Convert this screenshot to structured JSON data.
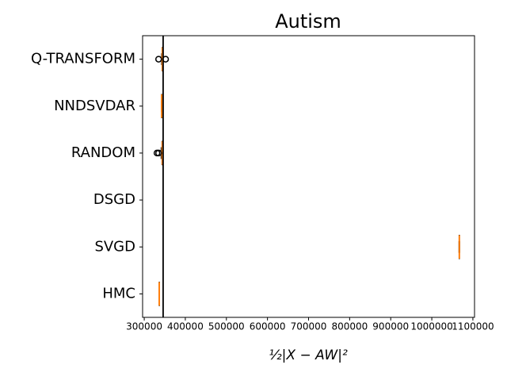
{
  "chart_data": {
    "type": "boxplot",
    "orientation": "horizontal",
    "title": "Autism",
    "xlabel": "½|X − AW|²",
    "categories": [
      "Q-TRANSFORM",
      "NNDSVDAR",
      "RANDOM",
      "DSGD",
      "SVGD",
      "HMC"
    ],
    "boxes": [
      {
        "whislo": 342000,
        "q1": 343500,
        "med": 344000,
        "q3": 344500,
        "whishi": 346000,
        "fliers": [
          335000,
          352000
        ]
      },
      {
        "whislo": 341500,
        "q1": 342000,
        "med": 342500,
        "q3": 343000,
        "whishi": 343500,
        "fliers": []
      },
      {
        "whislo": 341000,
        "q1": 343000,
        "med": 344000,
        "q3": 344500,
        "whishi": 346000,
        "fliers": [
          331000,
          335000
        ]
      },
      null,
      {
        "whislo": 1066000,
        "q1": 1066500,
        "med": 1067000,
        "q3": 1067500,
        "whishi": 1068000,
        "fliers": []
      },
      {
        "whislo": 336000,
        "q1": 336300,
        "med": 336500,
        "q3": 336700,
        "whishi": 337000,
        "fliers": []
      }
    ],
    "xlim": [
      296000,
      1104000
    ],
    "xticks": [
      300000,
      400000,
      500000,
      600000,
      700000,
      800000,
      900000,
      1000000,
      1100000
    ],
    "reference_line": 346000,
    "box_color": "#000000",
    "median_color": "#ff7f0e",
    "reference_color": "#000000"
  }
}
